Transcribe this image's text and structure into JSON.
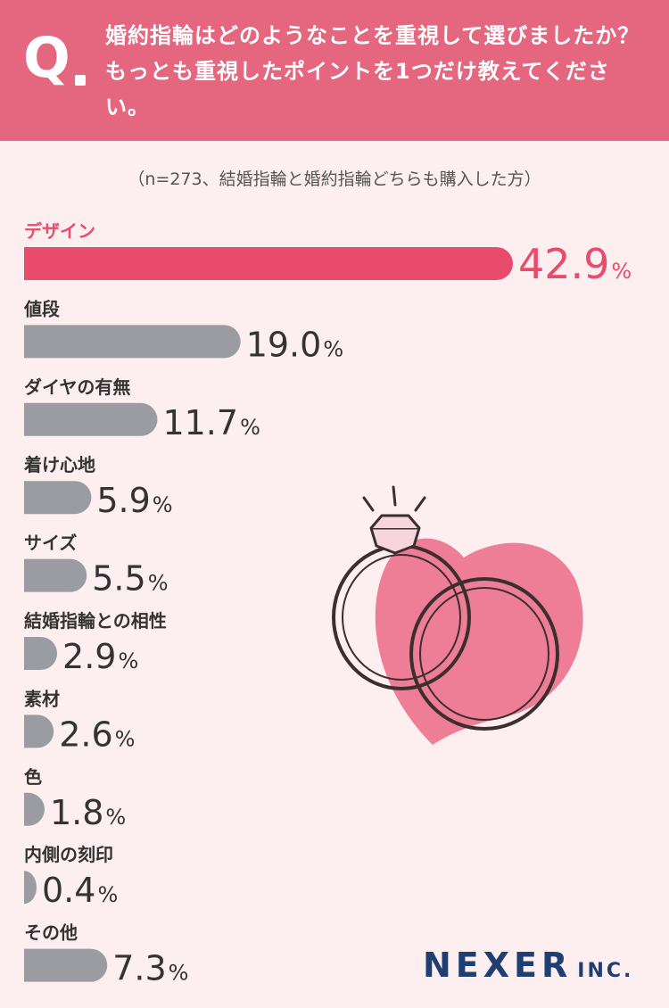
{
  "header": {
    "q_mark": "Q",
    "question": "婚約指輪はどのようなことを重視して選びましたか？もっとも重視したポイントを1つだけ教えてください。"
  },
  "sample_note": "（n=273、結婚指輪と婚約指輪どちらも購入した方）",
  "colors": {
    "header_bg": "#e5677f",
    "background": "#fdeef0",
    "highlight_bar": "#e94b6d",
    "highlight_text": "#e94b6d",
    "bar": "#9b9ca1",
    "heart": "#ee7d96",
    "ring_stroke": "#3d2e2e",
    "logo": "#1f3f72"
  },
  "logo": {
    "main": "NEXER",
    "sub": "INC."
  },
  "chart_data": {
    "type": "bar",
    "orientation": "horizontal",
    "unit": "%",
    "categories": [
      "デザイン",
      "値段",
      "ダイヤの有無",
      "着け心地",
      "サイズ",
      "結婚指輪との相性",
      "素材",
      "色",
      "内側の刻印",
      "その他"
    ],
    "values": [
      42.9,
      19.0,
      11.7,
      5.9,
      5.5,
      2.9,
      2.6,
      1.8,
      0.4,
      7.3
    ],
    "value_labels": [
      "42.9",
      "19.0",
      "11.7",
      "5.9",
      "5.5",
      "2.9",
      "2.6",
      "1.8",
      "0.4",
      "7.3"
    ],
    "highlight_index": 0,
    "illustration": [
      "heart-icon",
      "ring-icon"
    ]
  }
}
